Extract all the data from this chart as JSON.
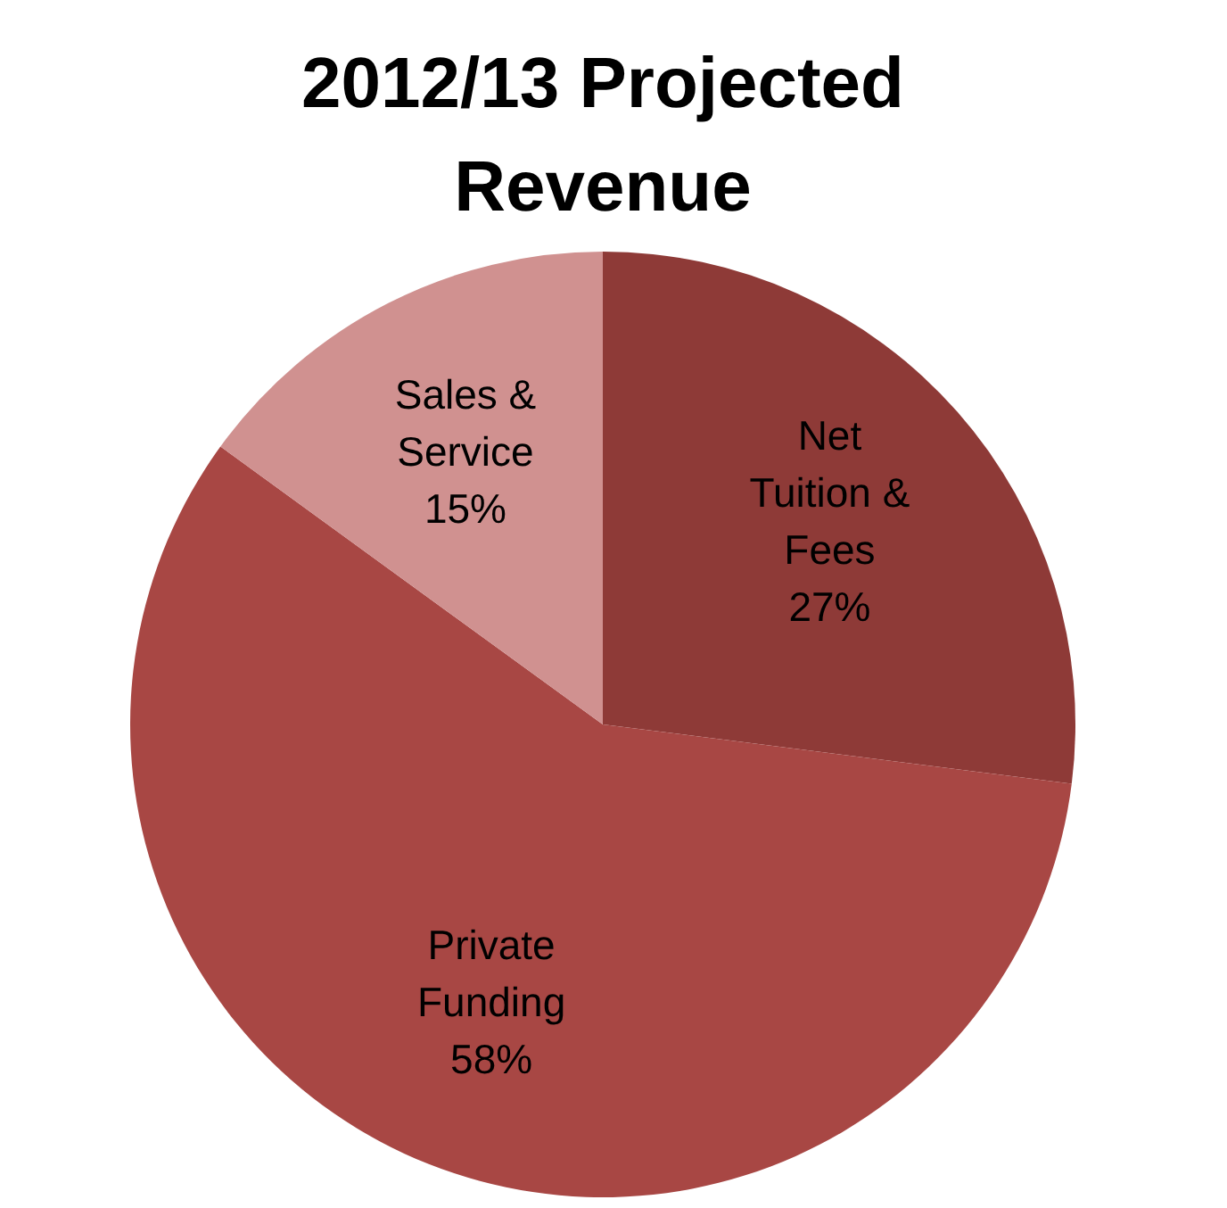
{
  "chart_data": {
    "type": "pie",
    "title": "2012/13 Projected Revenue",
    "categories": [
      "Net Tuition & Fees",
      "Private Funding",
      "Sales & Service"
    ],
    "values": [
      27,
      58,
      15
    ],
    "value_labels": [
      "27%",
      "58%",
      "15%"
    ],
    "colors": [
      "#8e3a37",
      "#a84744",
      "#d09190"
    ]
  }
}
